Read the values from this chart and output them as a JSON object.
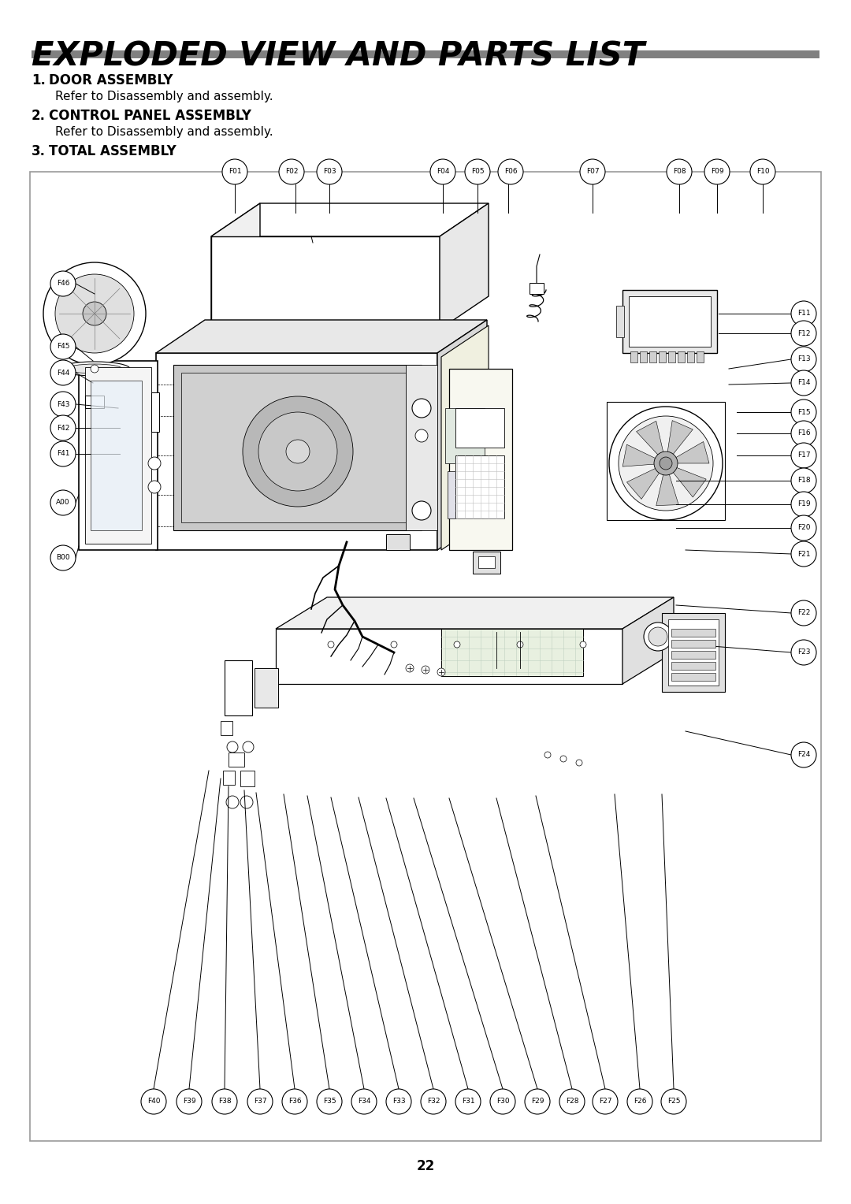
{
  "title": "EXPLODED VIEW AND PARTS LIST",
  "title_fontsize": 30,
  "title_style": "italic",
  "title_weight": "bold",
  "rule_color": "#808080",
  "background_color": "#ffffff",
  "sections": [
    {
      "number": "1.",
      "heading": "DOOR ASSEMBLY",
      "subtext": "Refer to Disassembly and assembly."
    },
    {
      "number": "2.",
      "heading": "CONTROL PANEL ASSEMBLY",
      "subtext": "Refer to Disassembly and assembly."
    },
    {
      "number": "3.",
      "heading": "TOTAL ASSEMBLY",
      "subtext": null
    }
  ],
  "section_heading_fontsize": 12,
  "section_subtext_fontsize": 11,
  "page_number": "22",
  "page_number_fontsize": 12,
  "parts_labels_top": [
    "F01",
    "F02",
    "F03",
    "F04",
    "F05",
    "F06",
    "F07",
    "F08",
    "F09",
    "F10"
  ],
  "parts_labels_right": [
    "F11",
    "F12",
    "F13",
    "F14",
    "F15",
    "F16",
    "F17",
    "F18",
    "F19",
    "F20",
    "F21",
    "F22",
    "F23",
    "F24"
  ],
  "parts_labels_bottom": [
    "F40",
    "F39",
    "F38",
    "F37",
    "F36",
    "F35",
    "F34",
    "F33",
    "F32",
    "F31",
    "F30",
    "F29",
    "F28",
    "F27",
    "F26",
    "F25"
  ],
  "parts_labels_left": [
    "F46",
    "F45",
    "F44",
    "F43",
    "F42",
    "F41",
    "A00",
    "B00"
  ]
}
